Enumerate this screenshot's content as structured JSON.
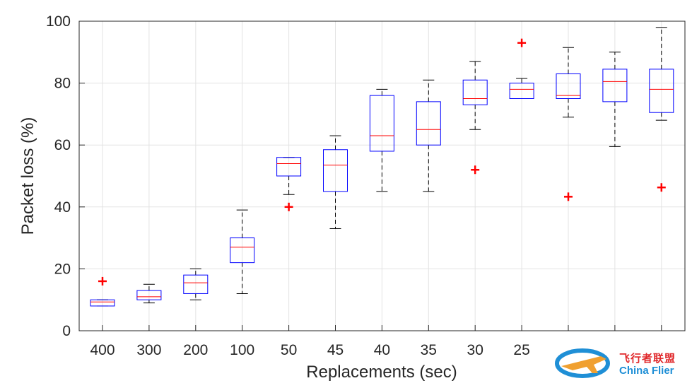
{
  "chart_data": {
    "type": "box",
    "title": "",
    "xlabel": "Replacements (sec)",
    "ylabel": "Packet loss (%)",
    "ylim": [
      0,
      100
    ],
    "yticks": [
      0,
      20,
      40,
      60,
      80,
      100
    ],
    "grid": true,
    "categories": [
      "400",
      "300",
      "200",
      "100",
      "50",
      "45",
      "40",
      "35",
      "30",
      "25",
      "",
      "",
      ""
    ],
    "boxes": [
      {
        "min": 8,
        "q1": 8,
        "median": 9.3,
        "q3": 10,
        "max": 10,
        "outliers": [
          16
        ]
      },
      {
        "min": 9,
        "q1": 10,
        "median": 11,
        "q3": 13,
        "max": 15,
        "outliers": []
      },
      {
        "min": 10,
        "q1": 12,
        "median": 15.5,
        "q3": 18,
        "max": 20,
        "outliers": []
      },
      {
        "min": 12,
        "q1": 22,
        "median": 27,
        "q3": 30,
        "max": 39,
        "outliers": []
      },
      {
        "min": 44,
        "q1": 50,
        "median": 54,
        "q3": 56,
        "max": 56,
        "outliers": [
          40
        ]
      },
      {
        "min": 33,
        "q1": 45,
        "median": 53.5,
        "q3": 58.5,
        "max": 63,
        "outliers": []
      },
      {
        "min": 45,
        "q1": 58,
        "median": 63,
        "q3": 76,
        "max": 78,
        "outliers": []
      },
      {
        "min": 45,
        "q1": 60,
        "median": 65,
        "q3": 74,
        "max": 81,
        "outliers": []
      },
      {
        "min": 65,
        "q1": 73,
        "median": 75,
        "q3": 81,
        "max": 87,
        "outliers": [
          52
        ]
      },
      {
        "min": 75,
        "q1": 75,
        "median": 78,
        "q3": 80,
        "max": 81.5,
        "outliers": [
          93
        ]
      },
      {
        "min": 69,
        "q1": 75,
        "median": 76,
        "q3": 83,
        "max": 91.5,
        "outliers": [
          43.3
        ]
      },
      {
        "min": 59.5,
        "q1": 74,
        "median": 80.5,
        "q3": 84.5,
        "max": 90,
        "outliers": []
      },
      {
        "min": 68,
        "q1": 70.5,
        "median": 78,
        "q3": 84.5,
        "max": 98,
        "outliers": [
          46.3
        ]
      }
    ]
  },
  "watermark": {
    "text_cn": "飞行者联盟",
    "text_en": "China Flier"
  }
}
